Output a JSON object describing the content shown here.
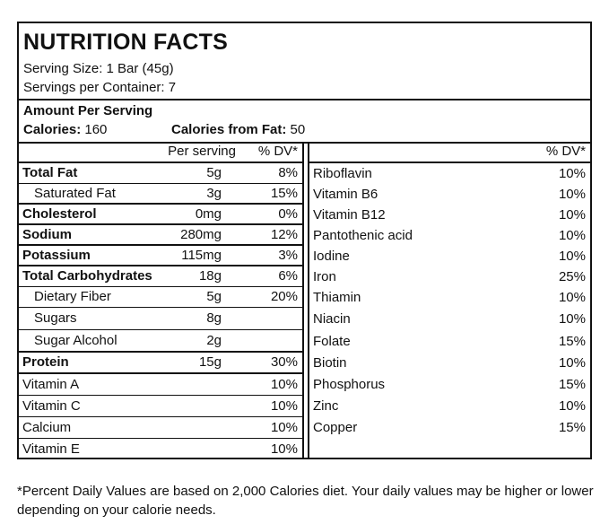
{
  "label": {
    "title": "NUTRITION FACTS",
    "serving_size": "Serving Size: 1 Bar (45g)",
    "servings_per_container": "Servings per Container: 7",
    "amount_per_serving": "Amount Per Serving",
    "calories_label": "Calories:",
    "calories_value": "160",
    "calories_fat_label": "Calories from Fat:",
    "calories_fat_value": "50"
  },
  "left_table": {
    "header_per_serving": "Per serving",
    "header_dv": "% DV*",
    "rows": [
      {
        "name": "Total Fat",
        "amount": "5g",
        "dv": "8%"
      },
      {
        "name": "Saturated Fat",
        "amount": "3g",
        "dv": "15%"
      },
      {
        "name": "Cholesterol",
        "amount": "0mg",
        "dv": "0%"
      },
      {
        "name": "Sodium",
        "amount": "280mg",
        "dv": "12%"
      },
      {
        "name": "Potassium",
        "amount": "115mg",
        "dv": "3%"
      },
      {
        "name": "Total Carbohydrates",
        "amount": "18g",
        "dv": "6%"
      },
      {
        "name": "Dietary Fiber",
        "amount": "5g",
        "dv": "20%"
      },
      {
        "name": "Sugars",
        "amount": "8g",
        "dv": ""
      },
      {
        "name": "Sugar Alcohol",
        "amount": "2g",
        "dv": ""
      },
      {
        "name": "Protein",
        "amount": "15g",
        "dv": "30%"
      },
      {
        "name": "Vitamin A",
        "amount": "",
        "dv": "10%"
      },
      {
        "name": "Vitamin C",
        "amount": "",
        "dv": "10%"
      },
      {
        "name": "Calcium",
        "amount": "",
        "dv": "10%"
      },
      {
        "name": "Vitamin E",
        "amount": "",
        "dv": "10%"
      }
    ]
  },
  "right_table": {
    "header_dv": "% DV*",
    "rows": [
      {
        "name": "Riboflavin",
        "dv": "10%"
      },
      {
        "name": "Vitamin B6",
        "dv": "10%"
      },
      {
        "name": "Vitamin B12",
        "dv": "10%"
      },
      {
        "name": "Pantothenic acid",
        "dv": "10%"
      },
      {
        "name": "Iodine",
        "dv": "10%"
      },
      {
        "name": "Iron",
        "dv": "25%"
      },
      {
        "name": "Thiamin",
        "dv": "10%"
      },
      {
        "name": "Niacin",
        "dv": "10%"
      },
      {
        "name": "Folate",
        "dv": "15%"
      },
      {
        "name": "Biotin",
        "dv": "10%"
      },
      {
        "name": "Phosphorus",
        "dv": "15%"
      },
      {
        "name": "Zinc",
        "dv": "10%"
      },
      {
        "name": "Copper",
        "dv": "15%"
      }
    ]
  },
  "footnote": "*Percent Daily Values are based on 2,000 Calories diet. Your daily values may be higher or lower depending on your calorie needs."
}
